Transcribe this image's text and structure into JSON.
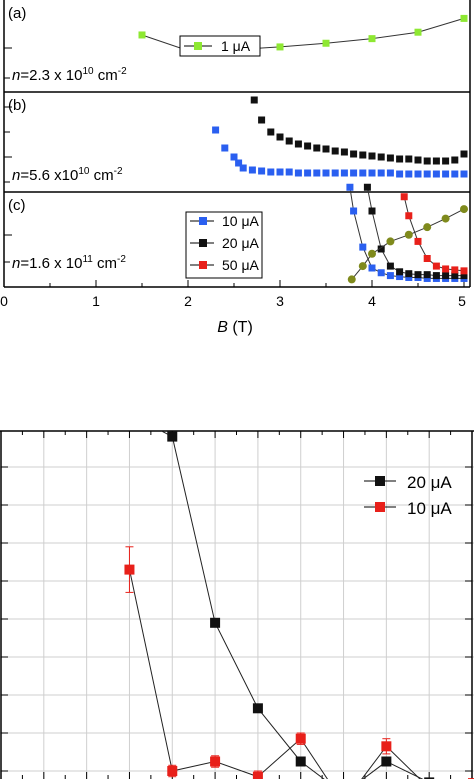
{
  "chart_data": [
    {
      "type": "scatter",
      "panel_label": "(a)",
      "annotation": "n=2.3 x 10^10 cm^-2",
      "annotation_parts": {
        "n": "n",
        "eq": "=2.3 x 10",
        "exp": "10",
        "unit": " cm",
        "unit_exp": "-2"
      },
      "xlim": [
        0,
        5
      ],
      "series": [
        {
          "name": "1 μA",
          "color": "#8ee832",
          "connected": true,
          "x": [
            1.5,
            2.0,
            2.5,
            3.0,
            3.5,
            4.0,
            4.5,
            5.0
          ],
          "y": [
            0.62,
            0.45,
            0.46,
            0.49,
            0.53,
            0.58,
            0.65,
            0.8
          ]
        }
      ],
      "legend": [
        "1 μA"
      ]
    },
    {
      "type": "scatter",
      "panel_label": "(b)",
      "annotation_parts": {
        "n": "n",
        "eq": "=5.6 x10",
        "exp": "10",
        "unit": " cm",
        "unit_exp": "-2"
      },
      "xlim": [
        0,
        5
      ],
      "series": [
        {
          "name": "20 μA",
          "color": "#111111",
          "x": [
            2.72,
            2.8,
            2.9,
            3.0,
            3.1,
            3.2,
            3.3,
            3.4,
            3.5,
            3.6,
            3.7,
            3.8,
            3.9,
            4.0,
            4.1,
            4.2,
            4.3,
            4.4,
            4.5,
            4.6,
            4.7,
            4.8,
            4.9,
            5.0
          ],
          "y": [
            0.92,
            0.72,
            0.6,
            0.55,
            0.51,
            0.48,
            0.46,
            0.44,
            0.43,
            0.41,
            0.4,
            0.38,
            0.37,
            0.36,
            0.35,
            0.34,
            0.33,
            0.33,
            0.32,
            0.31,
            0.31,
            0.31,
            0.32,
            0.38
          ]
        },
        {
          "name": "10 μA",
          "color": "#2a5ff0",
          "x": [
            2.3,
            2.4,
            2.5,
            2.55,
            2.6,
            2.7,
            2.8,
            2.9,
            3.0,
            3.1,
            3.2,
            3.3,
            3.4,
            3.5,
            3.6,
            3.7,
            3.8,
            3.9,
            4.0,
            4.1,
            4.2,
            4.3,
            4.4,
            4.5,
            4.6,
            4.7,
            4.8,
            4.9,
            5.0
          ],
          "y": [
            0.62,
            0.44,
            0.35,
            0.29,
            0.24,
            0.22,
            0.21,
            0.2,
            0.2,
            0.2,
            0.19,
            0.19,
            0.19,
            0.19,
            0.19,
            0.19,
            0.19,
            0.19,
            0.19,
            0.19,
            0.19,
            0.18,
            0.18,
            0.18,
            0.18,
            0.18,
            0.18,
            0.18,
            0.18
          ]
        }
      ]
    },
    {
      "type": "scatter",
      "panel_label": "(c)",
      "annotation_parts": {
        "n": "n",
        "eq": "=1.6 x 10",
        "exp": "11",
        "unit": " cm",
        "unit_exp": "-2"
      },
      "xlim": [
        0,
        5
      ],
      "xlabel": "B (T)",
      "xlabel_parts": {
        "var": "B",
        "unit": " (T)"
      },
      "xticks": [
        "0",
        "1",
        "2",
        "3",
        "4",
        "5"
      ],
      "series": [
        {
          "name": "10 μA",
          "color": "#2a5ff0",
          "connected": true,
          "x": [
            3.76,
            3.8,
            3.9,
            4.0,
            4.1,
            4.2,
            4.3,
            4.4,
            4.5,
            4.6,
            4.7,
            4.8,
            4.9,
            5.0
          ],
          "y": [
            1.05,
            0.8,
            0.42,
            0.2,
            0.15,
            0.12,
            0.11,
            0.1,
            0.1,
            0.09,
            0.09,
            0.09,
            0.09,
            0.09
          ]
        },
        {
          "name": "20 μA",
          "color": "#111111",
          "connected": true,
          "x": [
            3.95,
            4.0,
            4.1,
            4.2,
            4.3,
            4.4,
            4.5,
            4.6,
            4.7,
            4.8,
            4.9,
            5.0
          ],
          "y": [
            1.05,
            0.8,
            0.4,
            0.22,
            0.16,
            0.14,
            0.13,
            0.13,
            0.12,
            0.12,
            0.12,
            0.12
          ]
        },
        {
          "name": "50 μA",
          "color": "#e8201a",
          "connected": true,
          "x": [
            4.35,
            4.4,
            4.5,
            4.6,
            4.7,
            4.8,
            4.9,
            5.0
          ],
          "y": [
            0.95,
            0.75,
            0.48,
            0.3,
            0.22,
            0.19,
            0.18,
            0.17
          ]
        },
        {
          "color": "#7f8a1c",
          "shape": "circle",
          "connected": true,
          "x": [
            3.78,
            3.9,
            4.0,
            4.2,
            4.4,
            4.6,
            4.8,
            5.0
          ],
          "y": [
            0.08,
            0.22,
            0.35,
            0.48,
            0.55,
            0.63,
            0.72,
            0.82
          ]
        }
      ],
      "legend": [
        "10 μA",
        "20 μA",
        "50 μA"
      ]
    },
    {
      "type": "line",
      "xlim": [
        0,
        11
      ],
      "ylim": [
        0,
        10
      ],
      "grid": true,
      "series": [
        {
          "name": "20 μA",
          "color": "#111111",
          "x": [
            2.8,
            4,
            5,
            6,
            7,
            8,
            9,
            10,
            11
          ],
          "y": [
            10.5,
            9.8,
            4.9,
            2.65,
            1.25,
            0.4,
            1.25,
            0.7,
            0.45
          ],
          "yerr": [
            0,
            0,
            0,
            0,
            0,
            0,
            0,
            0.05,
            0.05
          ]
        },
        {
          "name": "10 μA",
          "color": "#e8201a",
          "x": [
            3,
            4,
            5,
            6,
            7,
            8,
            9,
            10,
            11
          ],
          "y": [
            6.3,
            1.0,
            1.25,
            0.85,
            1.85,
            0.15,
            1.65,
            0.55,
            0.6
          ],
          "yerr": [
            0.6,
            0.15,
            0.15,
            0.15,
            0.15,
            0.2,
            0.2,
            0.2,
            0.2
          ]
        }
      ],
      "legend": [
        "20 μA",
        "10 μA"
      ]
    }
  ]
}
